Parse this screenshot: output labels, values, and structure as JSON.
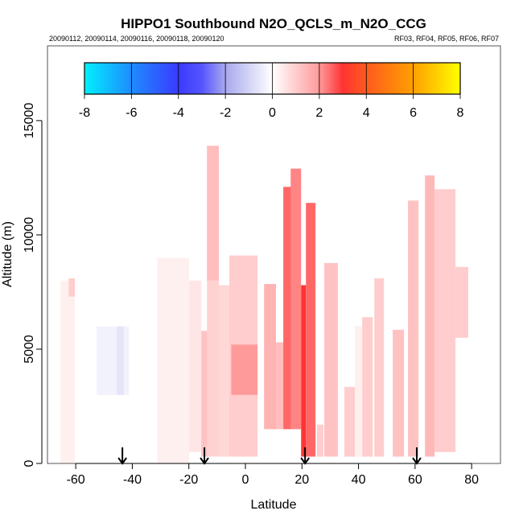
{
  "chart_data": {
    "type": "heatmap",
    "title": "HIPPO1 Southbound N2O_QCLS_m_N2O_CCG",
    "subtitle_left": "20090112, 20090114, 20090116, 20090118, 20090120",
    "subtitle_right": "RF03, RF04, RF05, RF06, RF07",
    "xlabel": "Latitude",
    "ylabel": "Altitude (m)",
    "xlim": [
      -70,
      90.2
    ],
    "ylim": [
      0,
      18270
    ],
    "xticks": [
      "-60",
      "-40",
      "-20",
      "0",
      "20",
      "40",
      "60",
      "80"
    ],
    "xtick_values": [
      -60,
      -40,
      -20,
      0,
      20,
      40,
      60,
      80
    ],
    "yticks": [
      "0",
      "5000",
      "10000",
      "15000"
    ],
    "ytick_values": [
      0,
      5000,
      10000,
      15000
    ],
    "colorbar": {
      "ticks": [
        "-8",
        "-6",
        "-4",
        "-2",
        "0",
        "2",
        "4",
        "6",
        "8"
      ],
      "tick_values": [
        -8,
        -6,
        -4,
        -2,
        0,
        2,
        4,
        6,
        8
      ],
      "range": [
        -8,
        8
      ],
      "stops": [
        {
          "v": -8,
          "c": "#00f0ff"
        },
        {
          "v": -6,
          "c": "#1e8cff"
        },
        {
          "v": -4,
          "c": "#3a3aff"
        },
        {
          "v": -3,
          "c": "#5555ff"
        },
        {
          "v": -2,
          "c": "#a8a8ee"
        },
        {
          "v": 0,
          "c": "#ffffff"
        },
        {
          "v": 2,
          "c": "#ff9a9a"
        },
        {
          "v": 3,
          "c": "#ff3333"
        },
        {
          "v": 4,
          "c": "#ff5a1e"
        },
        {
          "v": 6,
          "c": "#ffa000"
        },
        {
          "v": 8,
          "c": "#ffff00"
        }
      ]
    },
    "cells": [
      {
        "lat": [
          -65.4,
          -60.3
        ],
        "alt": [
          0,
          8000
        ],
        "value": 0.3
      },
      {
        "lat": [
          -62.5,
          -60.3
        ],
        "alt": [
          7300,
          8100
        ],
        "value": 1.0
      },
      {
        "lat": [
          -52.6,
          -41.2
        ],
        "alt": [
          3000,
          6000
        ],
        "value": -0.3
      },
      {
        "lat": [
          -45.5,
          -43.0
        ],
        "alt": [
          3000,
          6000
        ],
        "value": -0.6
      },
      {
        "lat": [
          -31.2,
          -19.9
        ],
        "alt": [
          0,
          9000
        ],
        "value": 0.3
      },
      {
        "lat": [
          -19.9,
          -15.6
        ],
        "alt": [
          500,
          8000
        ],
        "value": 0.5
      },
      {
        "lat": [
          -15.6,
          -13.3
        ],
        "alt": [
          300,
          5800
        ],
        "value": 1.2
      },
      {
        "lat": [
          -13.6,
          -9.4
        ],
        "alt": [
          300,
          8000
        ],
        "value": 0.9
      },
      {
        "lat": [
          -13.6,
          -9.4
        ],
        "alt": [
          8000,
          13900
        ],
        "value": 1.3
      },
      {
        "lat": [
          -9.4,
          -5.7
        ],
        "alt": [
          300,
          7800
        ],
        "value": 0.8
      },
      {
        "lat": [
          -5.7,
          4.3
        ],
        "alt": [
          300,
          9100
        ],
        "value": 1.0
      },
      {
        "lat": [
          -5.0,
          4.3
        ],
        "alt": [
          3000,
          5200
        ],
        "value": 2.0
      },
      {
        "lat": [
          6.6,
          10.8
        ],
        "alt": [
          1500,
          7850
        ],
        "value": 1.5
      },
      {
        "lat": [
          10.8,
          13.4
        ],
        "alt": [
          1500,
          5300
        ],
        "value": 1.3
      },
      {
        "lat": [
          13.4,
          16.5
        ],
        "alt": [
          1500,
          12100
        ],
        "value": 2.5
      },
      {
        "lat": [
          16.0,
          19.7
        ],
        "alt": [
          1500,
          12900
        ],
        "value": 2.2
      },
      {
        "lat": [
          19.7,
          21.4
        ],
        "alt": [
          300,
          7800
        ],
        "value": 3.0
      },
      {
        "lat": [
          21.4,
          24.8
        ],
        "alt": [
          300,
          11400
        ],
        "value": 2.5
      },
      {
        "lat": [
          25.3,
          27.6
        ],
        "alt": [
          300,
          1700
        ],
        "value": 1.0
      },
      {
        "lat": [
          27.9,
          32.7
        ],
        "alt": [
          300,
          8770
        ],
        "value": 1.2
      },
      {
        "lat": [
          35.0,
          38.7
        ],
        "alt": [
          300,
          3350
        ],
        "value": 1.0
      },
      {
        "lat": [
          38.7,
          41.3
        ],
        "alt": [
          300,
          6000
        ],
        "value": 0.3
      },
      {
        "lat": [
          41.3,
          45.0
        ],
        "alt": [
          300,
          6400
        ],
        "value": 1.0
      },
      {
        "lat": [
          45.6,
          49.0
        ],
        "alt": [
          300,
          8100
        ],
        "value": 1.0
      },
      {
        "lat": [
          52.1,
          56.1
        ],
        "alt": [
          300,
          5850
        ],
        "value": 1.2
      },
      {
        "lat": [
          57.5,
          61.2
        ],
        "alt": [
          300,
          11500
        ],
        "value": 1.2
      },
      {
        "lat": [
          63.5,
          66.9
        ],
        "alt": [
          300,
          12600
        ],
        "value": 1.4
      },
      {
        "lat": [
          66.9,
          74.3
        ],
        "alt": [
          500,
          12000
        ],
        "value": 1.0
      },
      {
        "lat": [
          74.3,
          78.8
        ],
        "alt": [
          5500,
          8600
        ],
        "value": 1.0
      }
    ],
    "arrows_lat": [
      -43.5,
      -14.5,
      21.1,
      60.6
    ]
  }
}
